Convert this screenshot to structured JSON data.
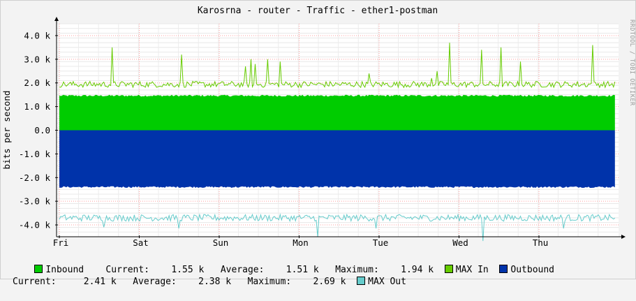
{
  "chart_data": {
    "type": "area",
    "title": "Karosrna - router - Traffic - ether1-postman",
    "ylabel": "bits per second",
    "watermark": "RRDTOOL / TOBI OETIKER",
    "ylim": [
      -4500,
      4500
    ],
    "yticks": [
      "4.0 k",
      "3.0 k",
      "2.0 k",
      "1.0 k",
      "0.0",
      "-1.0 k",
      "-2.0 k",
      "-3.0 k",
      "-4.0 k"
    ],
    "ytick_values": [
      4000,
      3000,
      2000,
      1000,
      0,
      -1000,
      -2000,
      -3000,
      -4000
    ],
    "xticks": [
      "Fri",
      "Sat",
      "Sun",
      "Mon",
      "Tue",
      "Wed",
      "Thu"
    ],
    "x_range_days": 7,
    "grid": true,
    "series": [
      {
        "name": "Inbound",
        "color": "#00cc00",
        "current": "1.55 k",
        "average": "1.51 k",
        "maximum": "1.94 k"
      },
      {
        "name": "MAX In",
        "color": "#66cc00"
      },
      {
        "name": "Outbound",
        "color": "#0033aa",
        "current": "2.41 k",
        "average": "2.38 k",
        "maximum": "2.69 k"
      },
      {
        "name": "MAX Out",
        "color": "#66cccc"
      }
    ],
    "spikes_max_in": [
      {
        "day": 0.66,
        "value": 3500
      },
      {
        "day": 1.53,
        "value": 3200
      },
      {
        "day": 2.33,
        "value": 2700
      },
      {
        "day": 2.39,
        "value": 3000
      },
      {
        "day": 2.45,
        "value": 2800
      },
      {
        "day": 2.61,
        "value": 3000
      },
      {
        "day": 2.77,
        "value": 2900
      },
      {
        "day": 3.88,
        "value": 2400
      },
      {
        "day": 4.66,
        "value": 2200
      },
      {
        "day": 4.72,
        "value": 2500
      },
      {
        "day": 4.88,
        "value": 3700
      },
      {
        "day": 5.28,
        "value": 3400
      },
      {
        "day": 5.52,
        "value": 3500
      },
      {
        "day": 5.76,
        "value": 2900
      },
      {
        "day": 6.68,
        "value": 3600
      }
    ]
  },
  "legend": {
    "current_label": "Current:",
    "average_label": "Average:",
    "maximum_label": "Maximum:"
  }
}
